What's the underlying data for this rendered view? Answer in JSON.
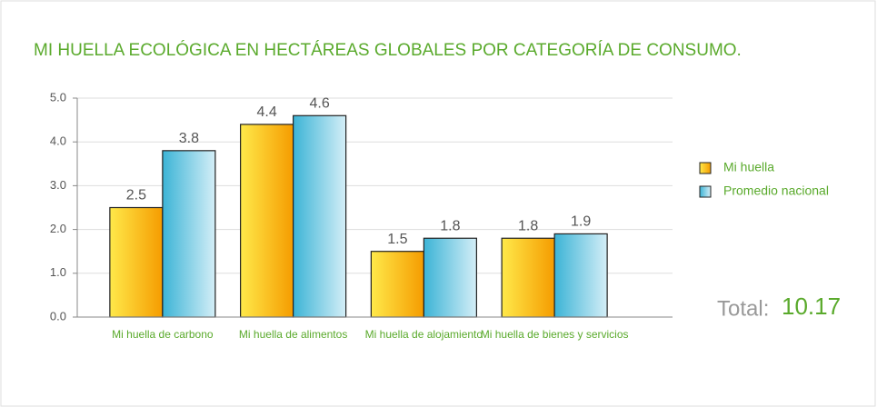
{
  "chart_data": {
    "type": "bar",
    "title": "MI HUELLA ECOLÓGICA EN HECTÁREAS GLOBALES POR CATEGORÍA DE CONSUMO.",
    "categories": [
      "Mi huella de carbono",
      "Mi huella de alimentos",
      "Mi huella de alojamiento",
      "Mi huella de bienes y servicios"
    ],
    "series": [
      {
        "name": "Mi huella",
        "color": "#f7a400",
        "values": [
          2.5,
          4.4,
          1.5,
          1.8
        ]
      },
      {
        "name": "Promedio nacional",
        "color": "#3cb4d6",
        "values": [
          3.8,
          4.6,
          1.8,
          1.9
        ]
      }
    ],
    "ylim": [
      0,
      5
    ],
    "yticks": [
      {
        "value": 0,
        "label": "0.0"
      },
      {
        "value": 1,
        "label": "1.0"
      },
      {
        "value": 2,
        "label": "2.0"
      },
      {
        "value": 3,
        "label": "3.0"
      },
      {
        "value": 4,
        "label": "4.0"
      },
      {
        "value": 5,
        "label": "5.0"
      }
    ],
    "grid": true,
    "legend": "right",
    "total": {
      "label": "Total:",
      "value": 10.17
    }
  }
}
